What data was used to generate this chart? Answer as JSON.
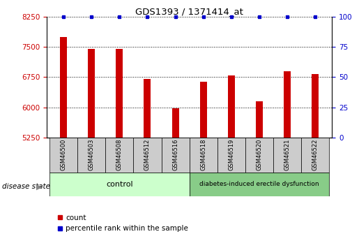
{
  "title": "GDS1393 / 1371414_at",
  "samples": [
    "GSM46500",
    "GSM46503",
    "GSM46508",
    "GSM46512",
    "GSM46516",
    "GSM46518",
    "GSM46519",
    "GSM46520",
    "GSM46521",
    "GSM46522"
  ],
  "counts": [
    7750,
    7450,
    7450,
    6700,
    5980,
    6630,
    6800,
    6150,
    6900,
    6820
  ],
  "ylim_left": [
    5250,
    8250
  ],
  "ylim_right": [
    0,
    100
  ],
  "yticks_left": [
    5250,
    6000,
    6750,
    7500,
    8250
  ],
  "yticks_right": [
    0,
    25,
    50,
    75,
    100
  ],
  "bar_color": "#cc0000",
  "percentile_color": "#0000cc",
  "control_label": "control",
  "disease_label": "diabetes-induced erectile dysfunction",
  "disease_state_label": "disease state",
  "legend_count_label": "count",
  "legend_percentile_label": "percentile rank within the sample",
  "control_bg": "#ccffcc",
  "disease_bg": "#88cc88",
  "tick_label_bg": "#cccccc",
  "n_control": 5,
  "n_disease": 5
}
